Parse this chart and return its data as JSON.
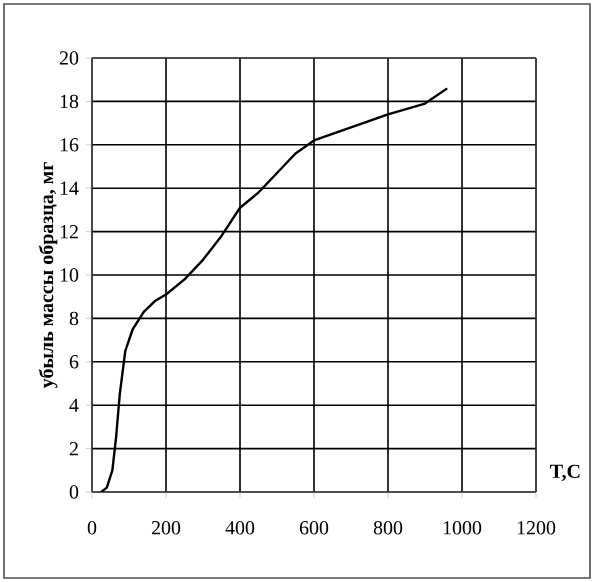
{
  "chart_data": {
    "type": "line",
    "xlabel": "T,C",
    "ylabel": "убыль массы образца, мг",
    "color": "#000000",
    "grid": true,
    "x": [
      25,
      40,
      55,
      65,
      75,
      90,
      110,
      140,
      170,
      200,
      250,
      300,
      350,
      400,
      450,
      500,
      550,
      600,
      700,
      800,
      900,
      960
    ],
    "values": [
      0,
      0.2,
      1,
      2.5,
      4.5,
      6.5,
      7.5,
      8.3,
      8.8,
      9.1,
      9.8,
      10.7,
      11.8,
      13.1,
      13.8,
      14.7,
      15.6,
      16.2,
      16.8,
      17.4,
      17.9,
      18.6
    ],
    "xlim": [
      0,
      1200
    ],
    "ylim": [
      0,
      20
    ],
    "xticks": [
      0,
      200,
      400,
      600,
      800,
      1000,
      1200
    ],
    "yticks": [
      0,
      2,
      4,
      6,
      8,
      10,
      12,
      14,
      16,
      18,
      20
    ]
  }
}
